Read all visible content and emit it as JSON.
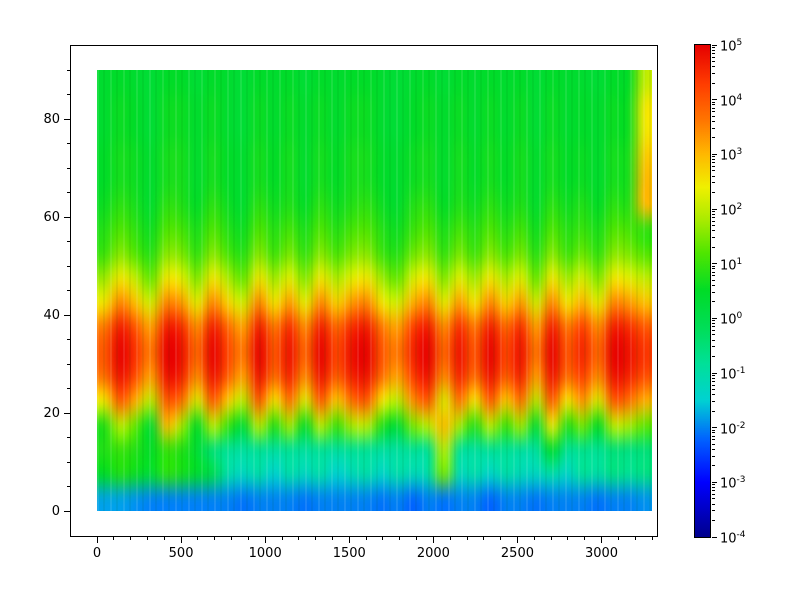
{
  "figure": {
    "background": "#ffffff",
    "frame_color": "#000000",
    "title": ""
  },
  "chart_data": {
    "type": "heatmap",
    "title": "",
    "xlabel": "",
    "ylabel": "",
    "x": {
      "min": 0,
      "max": 3300,
      "ticks": [
        0,
        500,
        1000,
        1500,
        2000,
        2500,
        3000
      ],
      "tick_labels": [
        "0",
        "500",
        "1000",
        "1500",
        "2000",
        "2500",
        "3000"
      ],
      "minor_step": 100
    },
    "y": {
      "min": 0,
      "max": 90,
      "ticks": [
        0,
        20,
        40,
        60,
        80
      ],
      "tick_labels": [
        "0",
        "20",
        "40",
        "60",
        "80"
      ],
      "minor_step": 5
    },
    "color_scale": {
      "type": "log",
      "min_exp": -4,
      "max_exp": 5,
      "base_label": "10",
      "tick_exps": [
        5,
        4,
        3,
        2,
        1,
        0,
        -1,
        -2,
        -3,
        -4
      ]
    },
    "colormap_stops": [
      {
        "v": -4.0,
        "c": [
          0,
          0,
          140
        ]
      },
      {
        "v": -3.0,
        "c": [
          0,
          0,
          255
        ]
      },
      {
        "v": -2.2,
        "c": [
          0,
          100,
          255
        ]
      },
      {
        "v": -1.5,
        "c": [
          0,
          210,
          210
        ]
      },
      {
        "v": -0.8,
        "c": [
          0,
          225,
          150
        ]
      },
      {
        "v": -0.2,
        "c": [
          0,
          222,
          90
        ]
      },
      {
        "v": 0.5,
        "c": [
          0,
          220,
          40
        ]
      },
      {
        "v": 1.2,
        "c": [
          80,
          230,
          0
        ]
      },
      {
        "v": 1.8,
        "c": [
          170,
          235,
          0
        ]
      },
      {
        "v": 2.4,
        "c": [
          240,
          240,
          0
        ]
      },
      {
        "v": 3.0,
        "c": [
          255,
          185,
          0
        ]
      },
      {
        "v": 3.6,
        "c": [
          255,
          120,
          0
        ]
      },
      {
        "v": 4.3,
        "c": [
          255,
          60,
          0
        ]
      },
      {
        "v": 5.0,
        "c": [
          230,
          0,
          0
        ]
      }
    ],
    "grid": {
      "x_min": 0,
      "x_max": 3300,
      "y_min": 0,
      "y_max": 90,
      "note": "log10 amplitude values, rows bottom-to-top, 36 columns spanning x 0..3300, 18 rows spanning y 0..90",
      "log_values": [
        [
          -1.8,
          -1.8,
          -1.9,
          -2.0,
          -2.0,
          -2.0,
          -2.0,
          -2.0,
          -2.0,
          -2.1,
          -2.0,
          -2.0,
          -2.0,
          -2.1,
          -2.0,
          -2.0,
          -2.0,
          -2.0,
          -2.1,
          -2.0,
          -2.2,
          -2.0,
          -2.1,
          -2.0,
          -2.0,
          -2.2,
          -2.0,
          -2.0,
          -2.1,
          -2.0,
          -2.0,
          -2.0,
          -2.1,
          -2.0,
          -2.0,
          -1.9
        ],
        [
          0.5,
          0.8,
          0.6,
          0.3,
          0.9,
          0.7,
          0.4,
          0.0,
          -1.0,
          -1.3,
          -1.0,
          -1.5,
          -1.0,
          -1.3,
          -1.0,
          -1.5,
          -1.2,
          -1.0,
          -1.4,
          -1.0,
          -1.2,
          -1.0,
          1.5,
          -1.2,
          -1.0,
          -1.4,
          -1.0,
          -1.2,
          -1.3,
          -1.0,
          -1.4,
          -0.8,
          -1.0,
          -0.6,
          -0.8,
          -0.6
        ],
        [
          0.8,
          1.0,
          0.8,
          0.5,
          1.0,
          0.8,
          0.3,
          -0.5,
          -0.8,
          -0.9,
          -0.8,
          -0.9,
          -0.8,
          -0.9,
          -0.8,
          -0.9,
          -0.8,
          -0.8,
          -0.9,
          -0.9,
          -0.8,
          -0.8,
          2.0,
          -0.8,
          -0.9,
          -0.8,
          -0.8,
          -0.9,
          -0.9,
          0.5,
          -0.8,
          -0.7,
          -0.8,
          -0.5,
          -0.6,
          -0.5
        ],
        [
          0.8,
          2.0,
          1.3,
          0.3,
          3.0,
          1.8,
          0.5,
          2.0,
          1.0,
          0.3,
          2.0,
          0.8,
          1.8,
          0.5,
          2.0,
          1.0,
          1.8,
          2.0,
          0.8,
          0.3,
          1.5,
          2.0,
          3.0,
          1.8,
          0.8,
          2.0,
          1.0,
          1.8,
          0.3,
          2.5,
          0.8,
          1.5,
          0.5,
          2.0,
          1.8,
          1.3
        ],
        [
          2.5,
          4.0,
          3.1,
          1.9,
          4.0,
          3.7,
          2.2,
          4.0,
          2.8,
          1.9,
          4.0,
          2.5,
          3.7,
          2.2,
          4.0,
          2.8,
          3.7,
          4.0,
          2.5,
          1.9,
          3.4,
          4.0,
          2.2,
          3.7,
          2.5,
          4.0,
          2.8,
          3.7,
          1.9,
          4.0,
          2.5,
          3.4,
          2.2,
          4.0,
          3.7,
          3.1
        ],
        [
          3.7,
          4.8,
          4.1,
          3.2,
          4.8,
          4.6,
          3.4,
          4.8,
          3.9,
          3.2,
          4.8,
          3.7,
          4.6,
          3.4,
          4.8,
          3.9,
          4.6,
          4.8,
          3.7,
          3.2,
          4.3,
          4.8,
          3.4,
          4.6,
          3.7,
          4.8,
          3.9,
          4.6,
          3.2,
          4.8,
          3.7,
          4.3,
          3.4,
          4.8,
          4.6,
          4.1
        ],
        [
          4.0,
          5.0,
          4.4,
          3.6,
          5.0,
          4.8,
          3.8,
          5.0,
          4.2,
          3.6,
          5.0,
          4.0,
          4.8,
          3.8,
          5.0,
          4.2,
          4.8,
          5.0,
          4.0,
          3.6,
          4.6,
          5.0,
          3.8,
          4.8,
          4.0,
          5.0,
          4.2,
          4.8,
          3.6,
          5.0,
          4.0,
          4.6,
          3.8,
          5.0,
          4.8,
          4.4
        ],
        [
          3.6,
          4.7,
          4.0,
          3.2,
          4.7,
          4.5,
          3.4,
          4.7,
          3.8,
          3.2,
          4.7,
          3.6,
          4.5,
          3.4,
          4.7,
          3.8,
          4.5,
          4.7,
          3.6,
          3.2,
          4.3,
          4.7,
          3.4,
          4.5,
          3.6,
          4.7,
          3.8,
          4.5,
          3.2,
          4.7,
          3.6,
          4.3,
          3.4,
          4.7,
          4.5,
          4.0
        ],
        [
          2.5,
          3.5,
          2.9,
          2.1,
          3.5,
          3.3,
          2.3,
          3.5,
          2.7,
          2.1,
          3.5,
          2.5,
          3.3,
          2.3,
          3.5,
          2.7,
          3.3,
          3.5,
          2.5,
          2.1,
          3.1,
          3.5,
          2.3,
          3.3,
          2.5,
          3.5,
          2.7,
          3.3,
          2.1,
          3.5,
          2.5,
          3.1,
          2.3,
          3.5,
          3.3,
          2.9
        ],
        [
          1.7,
          2.5,
          2.0,
          1.3,
          2.5,
          2.3,
          1.5,
          2.5,
          1.8,
          1.3,
          2.5,
          1.7,
          2.3,
          1.5,
          2.5,
          1.8,
          2.3,
          2.5,
          1.7,
          1.3,
          2.2,
          2.5,
          1.5,
          2.3,
          1.7,
          2.5,
          1.8,
          2.3,
          1.3,
          2.5,
          1.7,
          2.2,
          1.5,
          2.5,
          2.3,
          2.0
        ],
        [
          1.0,
          1.6,
          1.2,
          0.8,
          1.6,
          1.5,
          0.9,
          1.6,
          1.1,
          0.8,
          1.6,
          1.0,
          1.5,
          0.9,
          1.6,
          1.1,
          1.5,
          1.6,
          1.0,
          0.8,
          1.4,
          1.6,
          0.9,
          1.5,
          1.0,
          1.6,
          1.1,
          1.5,
          0.8,
          1.6,
          1.0,
          1.4,
          0.9,
          1.6,
          1.5,
          1.2
        ],
        [
          0.8,
          1.2,
          0.9,
          0.6,
          1.2,
          1.1,
          0.7,
          1.2,
          0.8,
          0.6,
          1.2,
          0.8,
          1.1,
          0.7,
          1.2,
          0.8,
          1.1,
          1.2,
          0.8,
          0.6,
          1.0,
          1.2,
          0.7,
          1.1,
          0.8,
          1.2,
          0.8,
          1.1,
          0.6,
          1.2,
          0.8,
          1.0,
          0.7,
          1.2,
          1.1,
          0.9
        ],
        [
          0.6,
          0.9,
          0.7,
          0.4,
          0.9,
          0.8,
          0.5,
          0.9,
          0.6,
          0.4,
          0.9,
          0.6,
          0.8,
          0.5,
          0.9,
          0.6,
          0.8,
          0.9,
          0.6,
          0.4,
          0.8,
          0.9,
          0.5,
          0.8,
          0.6,
          0.9,
          0.6,
          0.8,
          0.4,
          0.9,
          0.6,
          0.8,
          0.5,
          0.9,
          0.8,
          3.0
        ],
        [
          0.5,
          0.7,
          0.6,
          0.4,
          0.7,
          0.7,
          0.4,
          0.7,
          0.5,
          0.4,
          0.7,
          0.5,
          0.7,
          0.4,
          0.7,
          0.5,
          0.7,
          0.7,
          0.5,
          0.4,
          0.6,
          0.7,
          0.4,
          0.7,
          0.5,
          0.7,
          0.5,
          0.7,
          0.4,
          0.7,
          0.5,
          0.6,
          0.4,
          0.7,
          0.7,
          3.0
        ],
        [
          0.5,
          0.7,
          0.6,
          0.4,
          0.7,
          0.7,
          0.4,
          0.7,
          0.5,
          0.4,
          0.7,
          0.5,
          0.7,
          0.4,
          0.7,
          0.5,
          0.7,
          0.7,
          0.5,
          0.4,
          0.6,
          0.7,
          0.4,
          0.7,
          0.5,
          0.7,
          0.5,
          0.7,
          0.4,
          0.7,
          0.5,
          0.6,
          0.4,
          0.7,
          0.7,
          2.8
        ],
        [
          0.4,
          0.6,
          0.5,
          0.3,
          0.6,
          0.6,
          0.4,
          0.6,
          0.4,
          0.3,
          0.6,
          0.4,
          0.6,
          0.4,
          0.6,
          0.4,
          0.6,
          0.6,
          0.4,
          0.3,
          0.5,
          0.6,
          0.4,
          0.6,
          0.4,
          0.6,
          0.4,
          0.6,
          0.3,
          0.6,
          0.4,
          0.5,
          0.4,
          0.6,
          0.6,
          2.5
        ],
        [
          0.4,
          0.6,
          0.5,
          0.3,
          0.6,
          0.6,
          0.4,
          0.6,
          0.4,
          0.3,
          0.6,
          0.4,
          0.6,
          0.4,
          0.6,
          0.4,
          0.6,
          0.6,
          0.4,
          0.3,
          0.5,
          0.6,
          0.4,
          0.6,
          0.4,
          0.6,
          0.4,
          0.6,
          0.3,
          0.6,
          0.4,
          0.5,
          0.4,
          0.6,
          0.6,
          2.5
        ],
        [
          0.4,
          0.5,
          0.4,
          0.3,
          0.5,
          0.5,
          0.3,
          0.5,
          0.4,
          0.3,
          0.5,
          0.4,
          0.5,
          0.3,
          0.5,
          0.4,
          0.5,
          0.5,
          0.4,
          0.3,
          0.4,
          0.5,
          0.3,
          0.5,
          0.4,
          0.5,
          0.4,
          0.5,
          0.3,
          0.5,
          0.4,
          0.4,
          0.3,
          0.5,
          0.5,
          2.0
        ]
      ]
    },
    "legend": {
      "position": "right",
      "kind": "colorbar"
    }
  }
}
